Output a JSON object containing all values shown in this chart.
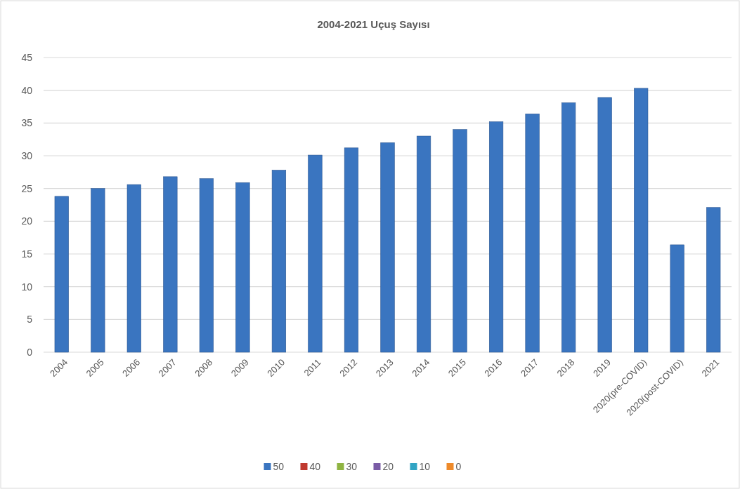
{
  "chart_data": {
    "type": "bar",
    "title": "2004-2021 Uçuş Sayısı",
    "categories": [
      "2004",
      "2005",
      "2006",
      "2007",
      "2008",
      "2009",
      "2010",
      "2011",
      "2012",
      "2013",
      "2014",
      "2015",
      "2016",
      "2017",
      "2018",
      "2019",
      "2020(pre-COVID)",
      "2020(post-COVID)",
      "2021"
    ],
    "series": [
      {
        "name": "50",
        "color": "#3a75c0",
        "values": [
          23.8,
          25.0,
          25.6,
          26.8,
          26.5,
          25.9,
          27.8,
          30.1,
          31.2,
          32.0,
          33.0,
          34.0,
          35.2,
          36.4,
          38.1,
          38.9,
          40.3,
          16.4,
          22.1
        ]
      },
      {
        "name": "40",
        "color": "#c0392f",
        "values": [
          null,
          null,
          null,
          null,
          null,
          null,
          null,
          null,
          null,
          null,
          null,
          null,
          null,
          null,
          null,
          null,
          null,
          null,
          null
        ]
      },
      {
        "name": "30",
        "color": "#8fb442",
        "values": [
          null,
          null,
          null,
          null,
          null,
          null,
          null,
          null,
          null,
          null,
          null,
          null,
          null,
          null,
          null,
          null,
          null,
          null,
          null
        ]
      },
      {
        "name": "20",
        "color": "#7a5ca6",
        "values": [
          null,
          null,
          null,
          null,
          null,
          null,
          null,
          null,
          null,
          null,
          null,
          null,
          null,
          null,
          null,
          null,
          null,
          null,
          null
        ]
      },
      {
        "name": "10",
        "color": "#31a4c4",
        "values": [
          null,
          null,
          null,
          null,
          null,
          null,
          null,
          null,
          null,
          null,
          null,
          null,
          null,
          null,
          null,
          null,
          null,
          null,
          null
        ]
      },
      {
        "name": "0",
        "color": "#ee8a2a",
        "values": [
          null,
          null,
          null,
          null,
          null,
          null,
          null,
          null,
          null,
          null,
          null,
          null,
          null,
          null,
          null,
          null,
          null,
          null,
          null
        ]
      }
    ],
    "ylim": [
      0,
      45
    ],
    "yticks": [
      0,
      5,
      10,
      15,
      20,
      25,
      30,
      35,
      40,
      45
    ],
    "grid": "y",
    "legend": "bottom"
  }
}
